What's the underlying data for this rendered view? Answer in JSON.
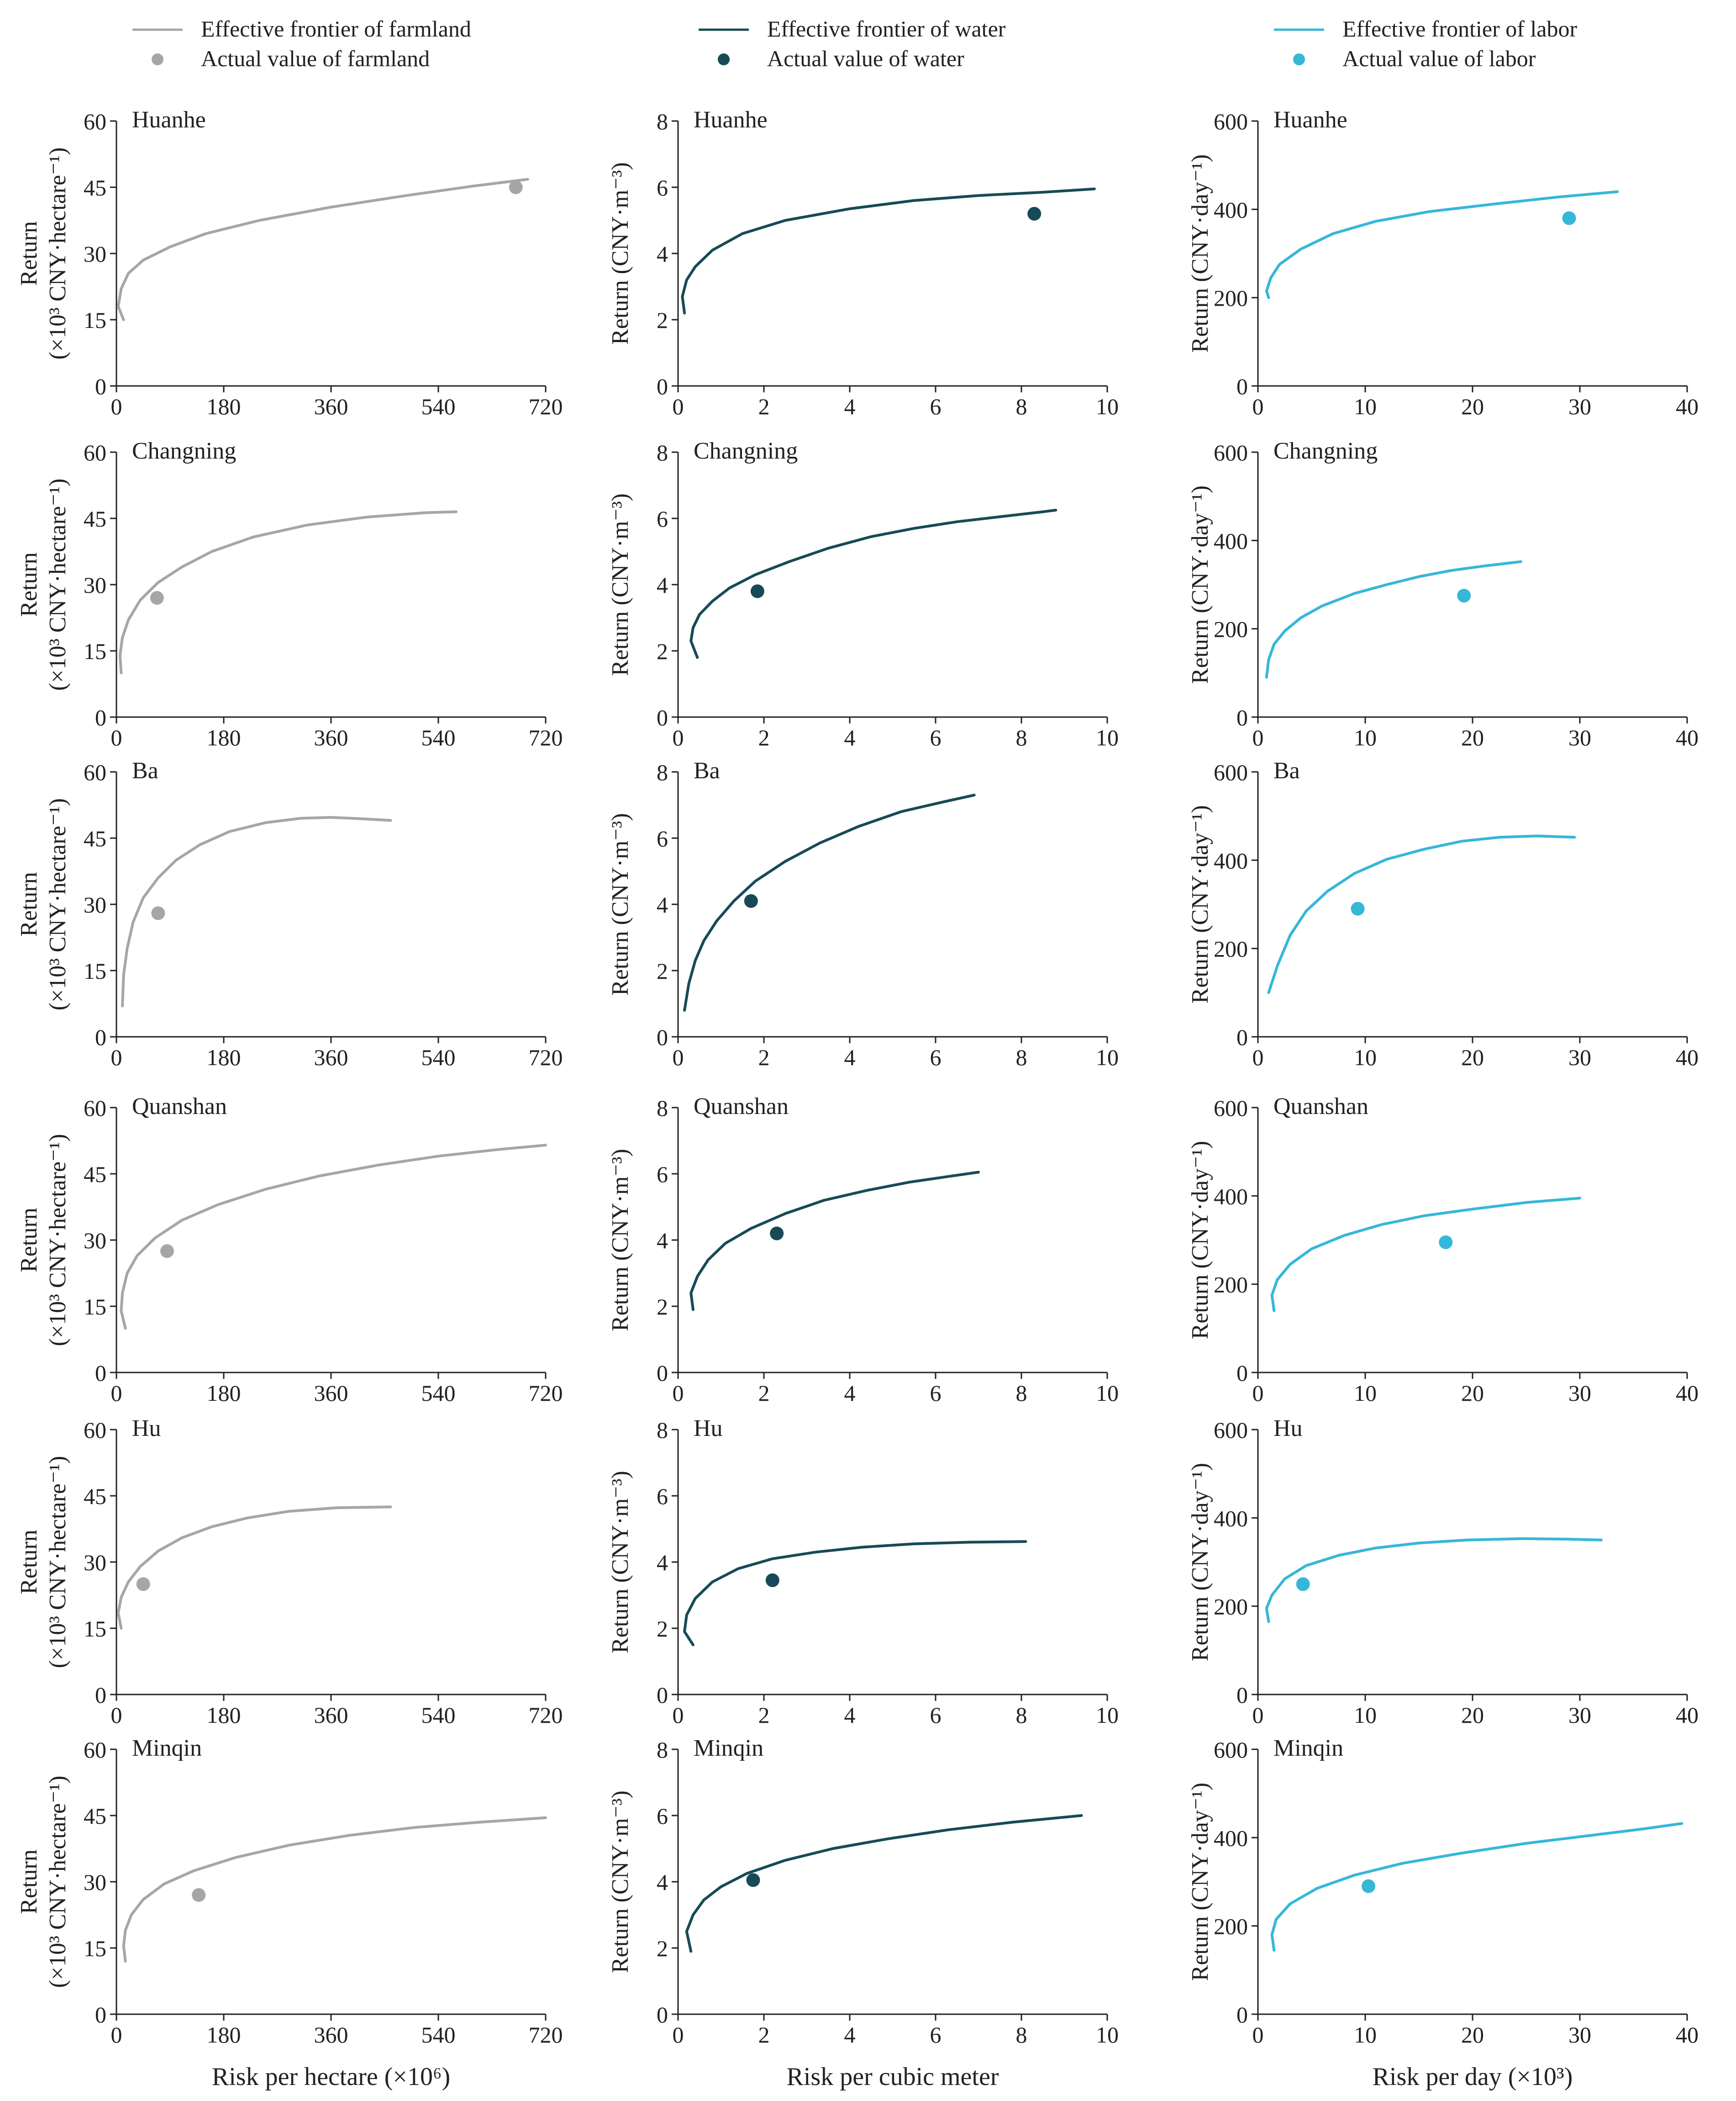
{
  "legend": [
    {
      "frontier_label": "Effective frontier of farmland",
      "actual_label": "Actual value of farmland",
      "color": "#a6a6a6"
    },
    {
      "frontier_label": "Effective frontier of water",
      "actual_label": "Actual value of water",
      "color": "#174a56"
    },
    {
      "frontier_label": "Effective frontier of labor",
      "actual_label": "Actual value of labor",
      "color": "#36b7d8"
    }
  ],
  "columns": [
    {
      "key": "farmland",
      "xlabel": "Risk per hectare (×10⁶)",
      "ylabel_line1": "Return",
      "ylabel_line2": "(×10³ CNY·hectare⁻¹)",
      "xlim": [
        0,
        720
      ],
      "xticks": [
        0,
        180,
        360,
        540,
        720
      ],
      "ylim": [
        0,
        60
      ],
      "yticks": [
        0,
        15,
        30,
        45,
        60
      ],
      "color": "#a6a6a6"
    },
    {
      "key": "water",
      "xlabel": "Risk per cubic meter",
      "ylabel_line1": "Return (CNY·m⁻³)",
      "ylabel_line2": "",
      "xlim": [
        0,
        10
      ],
      "xticks": [
        0,
        2,
        4,
        6,
        8,
        10
      ],
      "ylim": [
        0,
        8
      ],
      "yticks": [
        0,
        2,
        4,
        6,
        8
      ],
      "color": "#174a56"
    },
    {
      "key": "labor",
      "xlabel": "Risk per day (×10³)",
      "ylabel_line1": "Return (CNY·day⁻¹)",
      "ylabel_line2": "",
      "xlim": [
        0,
        40
      ],
      "xticks": [
        0,
        10,
        20,
        30,
        40
      ],
      "ylim": [
        0,
        600
      ],
      "yticks": [
        0,
        200,
        400,
        600
      ],
      "color": "#36b7d8"
    }
  ],
  "chart_data": [
    {
      "type": "line",
      "region": "Huanhe",
      "resource": "farmland",
      "series": [
        {
          "name": "Effective frontier of farmland",
          "x": [
            12,
            3,
            8,
            20,
            45,
            90,
            150,
            240,
            360,
            480,
            600,
            690
          ],
          "y": [
            15,
            18,
            22,
            25.5,
            28.5,
            31.5,
            34.5,
            37.5,
            40.5,
            43,
            45.3,
            46.8
          ]
        },
        {
          "name": "Actual value of farmland",
          "x": [
            670
          ],
          "y": [
            45
          ]
        }
      ]
    },
    {
      "type": "line",
      "region": "Huanhe",
      "resource": "water",
      "series": [
        {
          "name": "Effective frontier of water",
          "x": [
            0.15,
            0.1,
            0.2,
            0.4,
            0.8,
            1.5,
            2.5,
            4,
            5.5,
            7,
            8.5,
            9.7
          ],
          "y": [
            2.2,
            2.7,
            3.2,
            3.6,
            4.1,
            4.6,
            5.0,
            5.35,
            5.6,
            5.75,
            5.85,
            5.95
          ]
        },
        {
          "name": "Actual value of water",
          "x": [
            8.3
          ],
          "y": [
            5.2
          ]
        }
      ]
    },
    {
      "type": "line",
      "region": "Huanhe",
      "resource": "labor",
      "series": [
        {
          "name": "Effective frontier of labor",
          "x": [
            1,
            0.8,
            1.2,
            2,
            4,
            7,
            11,
            16,
            22,
            28,
            33.5
          ],
          "y": [
            200,
            215,
            245,
            275,
            310,
            345,
            373,
            395,
            412,
            428,
            440
          ]
        },
        {
          "name": "Actual value of labor",
          "x": [
            29
          ],
          "y": [
            380
          ]
        }
      ]
    },
    {
      "type": "line",
      "region": "Changning",
      "resource": "farmland",
      "series": [
        {
          "name": "Effective frontier of farmland",
          "x": [
            8,
            6,
            10,
            20,
            40,
            70,
            110,
            160,
            230,
            320,
            420,
            520,
            570
          ],
          "y": [
            10,
            14,
            18,
            22,
            26.5,
            30.5,
            34,
            37.5,
            40.8,
            43.5,
            45.3,
            46.3,
            46.5
          ]
        },
        {
          "name": "Actual value of farmland",
          "x": [
            68
          ],
          "y": [
            27
          ]
        }
      ]
    },
    {
      "type": "line",
      "region": "Changning",
      "resource": "water",
      "series": [
        {
          "name": "Effective frontier of water",
          "x": [
            0.45,
            0.3,
            0.35,
            0.5,
            0.8,
            1.2,
            1.8,
            2.6,
            3.5,
            4.5,
            5.5,
            6.5,
            7.5,
            8.5,
            8.8
          ],
          "y": [
            1.8,
            2.3,
            2.7,
            3.1,
            3.5,
            3.9,
            4.3,
            4.7,
            5.1,
            5.45,
            5.7,
            5.9,
            6.05,
            6.2,
            6.25
          ]
        },
        {
          "name": "Actual value of water",
          "x": [
            1.85
          ],
          "y": [
            3.8
          ]
        }
      ]
    },
    {
      "type": "line",
      "region": "Changning",
      "resource": "labor",
      "series": [
        {
          "name": "Effective frontier of labor",
          "x": [
            0.8,
            1,
            1.5,
            2.5,
            4,
            6,
            9,
            12,
            15,
            18,
            21,
            24.5
          ],
          "y": [
            90,
            130,
            165,
            195,
            225,
            252,
            280,
            300,
            318,
            332,
            342,
            352
          ]
        },
        {
          "name": "Actual value of labor",
          "x": [
            19.2
          ],
          "y": [
            275
          ]
        }
      ]
    },
    {
      "type": "line",
      "region": "Ba",
      "resource": "farmland",
      "series": [
        {
          "name": "Effective frontier of farmland",
          "x": [
            10,
            12,
            18,
            28,
            45,
            70,
            100,
            140,
            190,
            250,
            310,
            360,
            410,
            460
          ],
          "y": [
            7,
            14,
            20,
            26,
            31.5,
            36,
            40,
            43.5,
            46.5,
            48.5,
            49.5,
            49.7,
            49.4,
            49
          ]
        },
        {
          "name": "Actual value of farmland",
          "x": [
            70
          ],
          "y": [
            28
          ]
        }
      ]
    },
    {
      "type": "line",
      "region": "Ba",
      "resource": "water",
      "series": [
        {
          "name": "Effective frontier of water",
          "x": [
            0.15,
            0.25,
            0.4,
            0.6,
            0.9,
            1.3,
            1.8,
            2.5,
            3.3,
            4.2,
            5.2,
            6.2,
            6.9
          ],
          "y": [
            0.8,
            1.6,
            2.3,
            2.9,
            3.5,
            4.1,
            4.7,
            5.3,
            5.85,
            6.35,
            6.8,
            7.1,
            7.3
          ]
        },
        {
          "name": "Actual value of water",
          "x": [
            1.7
          ],
          "y": [
            4.1
          ]
        }
      ]
    },
    {
      "type": "line",
      "region": "Ba",
      "resource": "labor",
      "series": [
        {
          "name": "Effective frontier of labor",
          "x": [
            1,
            1.8,
            3,
            4.5,
            6.5,
            9,
            12,
            15.5,
            19,
            22.5,
            26,
            29.5
          ],
          "y": [
            100,
            160,
            230,
            285,
            330,
            370,
            402,
            425,
            443,
            452,
            455,
            452
          ]
        },
        {
          "name": "Actual value of labor",
          "x": [
            9.3
          ],
          "y": [
            290
          ]
        }
      ]
    },
    {
      "type": "line",
      "region": "Quanshan",
      "resource": "farmland",
      "series": [
        {
          "name": "Effective frontier of farmland",
          "x": [
            15,
            8,
            10,
            18,
            35,
            65,
            110,
            170,
            250,
            340,
            440,
            540,
            640,
            720
          ],
          "y": [
            10,
            14,
            18,
            22.5,
            26.5,
            30.5,
            34.5,
            38,
            41.5,
            44.5,
            47,
            49,
            50.5,
            51.5
          ]
        },
        {
          "name": "Actual value of farmland",
          "x": [
            85
          ],
          "y": [
            27.5
          ]
        }
      ]
    },
    {
      "type": "line",
      "region": "Quanshan",
      "resource": "water",
      "series": [
        {
          "name": "Effective frontier of water",
          "x": [
            0.35,
            0.3,
            0.45,
            0.7,
            1.1,
            1.7,
            2.5,
            3.4,
            4.4,
            5.4,
            6.3,
            7.0
          ],
          "y": [
            1.9,
            2.4,
            2.9,
            3.4,
            3.9,
            4.35,
            4.8,
            5.2,
            5.5,
            5.75,
            5.92,
            6.05
          ]
        },
        {
          "name": "Actual value of water",
          "x": [
            2.3
          ],
          "y": [
            4.2
          ]
        }
      ]
    },
    {
      "type": "line",
      "region": "Quanshan",
      "resource": "labor",
      "series": [
        {
          "name": "Effective frontier of labor",
          "x": [
            1.5,
            1.3,
            1.8,
            3,
            5,
            8,
            11.5,
            15.5,
            20,
            25,
            30
          ],
          "y": [
            140,
            175,
            210,
            245,
            280,
            310,
            335,
            355,
            370,
            385,
            395
          ]
        },
        {
          "name": "Actual value of labor",
          "x": [
            17.5
          ],
          "y": [
            295
          ]
        }
      ]
    },
    {
      "type": "line",
      "region": "Hu",
      "resource": "farmland",
      "series": [
        {
          "name": "Effective frontier of farmland",
          "x": [
            8,
            3,
            8,
            20,
            40,
            70,
            110,
            160,
            220,
            290,
            370,
            460
          ],
          "y": [
            15,
            18.5,
            22,
            25.5,
            29,
            32.5,
            35.5,
            38,
            40,
            41.5,
            42.3,
            42.5
          ]
        },
        {
          "name": "Actual value of farmland",
          "x": [
            45
          ],
          "y": [
            25
          ]
        }
      ]
    },
    {
      "type": "line",
      "region": "Hu",
      "resource": "water",
      "series": [
        {
          "name": "Effective frontier of water",
          "x": [
            0.35,
            0.15,
            0.2,
            0.4,
            0.8,
            1.4,
            2.2,
            3.2,
            4.3,
            5.5,
            6.8,
            8.1
          ],
          "y": [
            1.5,
            1.9,
            2.4,
            2.9,
            3.4,
            3.8,
            4.1,
            4.3,
            4.45,
            4.55,
            4.6,
            4.62
          ]
        },
        {
          "name": "Actual value of water",
          "x": [
            2.2
          ],
          "y": [
            3.45
          ]
        }
      ]
    },
    {
      "type": "line",
      "region": "Hu",
      "resource": "labor",
      "series": [
        {
          "name": "Effective frontier of labor",
          "x": [
            1,
            0.8,
            1.3,
            2.5,
            4.5,
            7.5,
            11,
            15,
            19.5,
            24.5,
            28.5,
            32
          ],
          "y": [
            165,
            195,
            225,
            262,
            292,
            315,
            332,
            343,
            350,
            353,
            352,
            350
          ]
        },
        {
          "name": "Actual value of labor",
          "x": [
            4.2
          ],
          "y": [
            250
          ]
        }
      ]
    },
    {
      "type": "line",
      "region": "Minqin",
      "resource": "farmland",
      "series": [
        {
          "name": "Effective frontier of farmland",
          "x": [
            15,
            12,
            15,
            25,
            45,
            80,
            130,
            200,
            290,
            390,
            500,
            610,
            720
          ],
          "y": [
            12,
            15.5,
            19,
            22.5,
            26,
            29.5,
            32.5,
            35.5,
            38.3,
            40.5,
            42.3,
            43.5,
            44.5
          ]
        },
        {
          "name": "Actual value of farmland",
          "x": [
            138
          ],
          "y": [
            27
          ]
        }
      ]
    },
    {
      "type": "line",
      "region": "Minqin",
      "resource": "water",
      "series": [
        {
          "name": "Effective frontier of water",
          "x": [
            0.3,
            0.2,
            0.35,
            0.6,
            1.0,
            1.6,
            2.5,
            3.6,
            4.9,
            6.3,
            7.8,
            9.4
          ],
          "y": [
            1.9,
            2.5,
            3.0,
            3.45,
            3.85,
            4.25,
            4.65,
            5.0,
            5.3,
            5.57,
            5.8,
            6.0
          ]
        },
        {
          "name": "Actual value of water",
          "x": [
            1.75
          ],
          "y": [
            4.05
          ]
        }
      ]
    },
    {
      "type": "line",
      "region": "Minqin",
      "resource": "labor",
      "series": [
        {
          "name": "Effective frontier of labor",
          "x": [
            1.5,
            1.3,
            1.7,
            3,
            5.5,
            9,
            13.5,
            19,
            25,
            31,
            36,
            39.5
          ],
          "y": [
            145,
            180,
            215,
            250,
            285,
            315,
            342,
            365,
            387,
            405,
            420,
            432
          ]
        },
        {
          "name": "Actual value of labor",
          "x": [
            10.3
          ],
          "y": [
            290
          ]
        }
      ]
    }
  ]
}
